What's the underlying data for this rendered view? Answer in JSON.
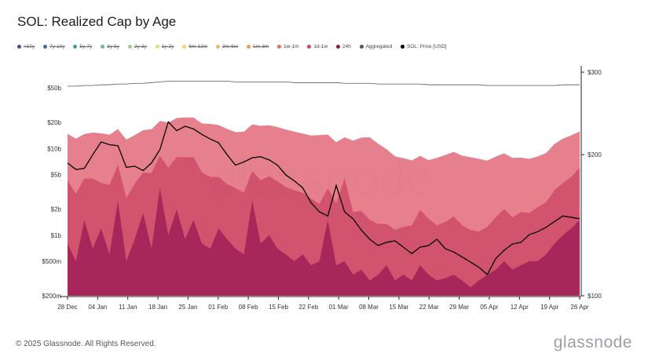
{
  "page": {
    "footer": "© 2025 Glassnode. All Rights Reserved.",
    "brand": "glassnode",
    "watermark": "glassnode"
  },
  "legend": [
    {
      "label": ">10y",
      "color": "#4a4a9a",
      "off": true
    },
    {
      "label": "7y-10y",
      "color": "#3f6fa8",
      "off": true
    },
    {
      "label": "5y-7y",
      "color": "#3f9aa8",
      "off": true
    },
    {
      "label": "3y-5y",
      "color": "#66bba0",
      "off": true
    },
    {
      "label": "2y-3y",
      "color": "#9ccf8d",
      "off": true
    },
    {
      "label": "1y-2y",
      "color": "#d6e27a",
      "off": true
    },
    {
      "label": "6m-12m",
      "color": "#f3d66e",
      "off": true
    },
    {
      "label": "3m-6m",
      "color": "#f6b862",
      "off": true
    },
    {
      "label": "1m-3m",
      "color": "#f39a5a",
      "off": true
    },
    {
      "label": "1w-1m",
      "color": "#e56e5f",
      "off": false
    },
    {
      "label": "1d-1w",
      "color": "#c94362",
      "off": false
    },
    {
      "label": "24h",
      "color": "#93164b",
      "off": false
    },
    {
      "label": "Aggregated",
      "color": "#555555",
      "off": false
    },
    {
      "label": "SOL: Price [USD]",
      "color": "#000000",
      "off": false
    }
  ],
  "chart_data": {
    "type": "area",
    "title": "SOL: Realized Cap by Age",
    "x": [
      "28 Dec",
      "30 Dec",
      "01 Jan",
      "03 Jan",
      "05 Jan",
      "07 Jan",
      "09 Jan",
      "11 Jan",
      "13 Jan",
      "15 Jan",
      "17 Jan",
      "19 Jan",
      "21 Jan",
      "23 Jan",
      "25 Jan",
      "27 Jan",
      "29 Jan",
      "31 Jan",
      "02 Feb",
      "04 Feb",
      "06 Feb",
      "08 Feb",
      "10 Feb",
      "12 Feb",
      "14 Feb",
      "16 Feb",
      "18 Feb",
      "20 Feb",
      "22 Feb",
      "24 Feb",
      "26 Feb",
      "28 Feb",
      "02 Mar",
      "04 Mar",
      "06 Mar",
      "08 Mar",
      "10 Mar",
      "12 Mar",
      "14 Mar",
      "16 Mar",
      "18 Mar",
      "20 Mar",
      "22 Mar",
      "24 Mar",
      "26 Mar",
      "28 Mar",
      "30 Mar",
      "01 Apr",
      "03 Apr",
      "05 Apr",
      "07 Apr",
      "09 Apr",
      "11 Apr",
      "13 Apr",
      "15 Apr",
      "17 Apr",
      "19 Apr",
      "21 Apr",
      "23 Apr",
      "25 Apr",
      "27 Apr",
      "29 Apr"
    ],
    "x_tick_labels": [
      "28 Dec",
      "04 Jan",
      "11 Jan",
      "18 Jan",
      "25 Jan",
      "01 Feb",
      "08 Feb",
      "15 Feb",
      "22 Feb",
      "01 Mar",
      "08 Mar",
      "15 Mar",
      "22 Mar",
      "29 Mar",
      "05 Apr",
      "12 Apr",
      "19 Apr",
      "26 Apr"
    ],
    "y_left": {
      "scale": "log",
      "range": [
        200000000,
        90000000000
      ],
      "tick_values": [
        200000000,
        500000000,
        1000000000,
        2000000000,
        5000000000,
        10000000000,
        20000000000,
        50000000000
      ],
      "tick_labels": [
        "$200m",
        "$500m",
        "$1b",
        "$2b",
        "$5b",
        "$10b",
        "$20b",
        "$50b"
      ]
    },
    "y_right": {
      "scale": "log",
      "range": [
        100,
        300
      ],
      "tick_values": [
        100,
        200,
        300
      ],
      "tick_labels": [
        "$100",
        "$200",
        "$300"
      ]
    },
    "series": [
      {
        "name": "1w-1m",
        "color": "#e37281",
        "values": [
          10500000000.0,
          10000000000.0,
          10200000000.0,
          10800000000.0,
          11000000000.0,
          10600000000.0,
          10300000000.0,
          10000000000.0,
          10400000000.0,
          11000000000.0,
          11500000000.0,
          12500000000.0,
          14000000000.0,
          14500000000.0,
          15000000000.0,
          14800000000.0,
          14200000000.0,
          14600000000.0,
          14000000000.0,
          13000000000.0,
          12000000000.0,
          12500000000.0,
          13500000000.0,
          14000000000.0,
          13800000000.0,
          13500000000.0,
          13000000000.0,
          12400000000.0,
          11800000000.0,
          11500000000.0,
          12000000000.0,
          11000000000.0,
          9500000000.0,
          9000000000.0,
          10500000000.0,
          11500000000.0,
          12000000000.0,
          10000000000.0,
          8500000000.0,
          7000000000.0,
          6500000000.0,
          6000000000.0,
          6300000000.0,
          5800000000.0,
          6500000000.0,
          7000000000.0,
          7500000000.0,
          7000000000.0,
          6800000000.0,
          6500000000.0,
          6000000000.0,
          6500000000.0,
          6800000000.0,
          6200000000.0,
          6000000000.0,
          5800000000.0,
          6000000000.0,
          6500000000.0,
          8000000000.0,
          9000000000.0,
          9500000000.0,
          9800000000.0
        ]
      },
      {
        "name": "1d-1w",
        "color": "#d1506d",
        "values": [
          3500000000.0,
          2500000000.0,
          3000000000.0,
          3800000000.0,
          2800000000.0,
          3200000000.0,
          4000000000.0,
          2200000000.0,
          3000000000.0,
          3500000000.0,
          4500000000.0,
          4800000000.0,
          5000000000.0,
          6000000000.0,
          7000000000.0,
          6500000000.0,
          4500000000.0,
          4000000000.0,
          3500000000.0,
          3000000000.0,
          2800000000.0,
          2500000000.0,
          3000000000.0,
          3500000000.0,
          3800000000.0,
          3500000000.0,
          3000000000.0,
          2800000000.0,
          2500000000.0,
          2200000000.0,
          1800000000.0,
          2000000000.0,
          1900000000.0,
          4000000000.0,
          1500000000.0,
          1500000000.0,
          1200000000.0,
          1000000000.0,
          900000000.0,
          850000000.0,
          900000000.0,
          1000000000.0,
          1500000000.0,
          1200000000.0,
          1000000000.0,
          1100000000.0,
          1300000000.0,
          1000000000.0,
          900000000.0,
          800000000.0,
          900000000.0,
          1200000000.0,
          1500000000.0,
          1200000000.0,
          1400000000.0,
          1300000000.0,
          1600000000.0,
          1800000000.0,
          2500000000.0,
          3000000000.0,
          3500000000.0,
          4500000000.0
        ]
      },
      {
        "name": "24h",
        "color": "#a4255a",
        "values": [
          800000000.0,
          500000000.0,
          1500000000.0,
          700000000.0,
          1200000000.0,
          600000000.0,
          2500000000.0,
          500000000.0,
          900000000.0,
          1800000000.0,
          700000000.0,
          3500000000.0,
          1000000000.0,
          2000000000.0,
          900000000.0,
          1500000000.0,
          800000000.0,
          700000000.0,
          1200000000.0,
          900000000.0,
          700000000.0,
          600000000.0,
          2500000000.0,
          800000000.0,
          1000000000.0,
          700000000.0,
          600000000.0,
          500000000.0,
          600000000.0,
          450000000.0,
          500000000.0,
          1500000000.0,
          450000000.0,
          500000000.0,
          350000000.0,
          400000000.0,
          300000000.0,
          350000000.0,
          450000000.0,
          300000000.0,
          350000000.0,
          300000000.0,
          450000000.0,
          350000000.0,
          300000000.0,
          320000000.0,
          350000000.0,
          300000000.0,
          250000000.0,
          300000000.0,
          350000000.0,
          400000000.0,
          500000000.0,
          400000000.0,
          450000000.0,
          500000000.0,
          500000000.0,
          600000000.0,
          800000000.0,
          1000000000.0,
          1200000000.0,
          1500000000.0
        ]
      },
      {
        "name": "Aggregated",
        "color": "#555555",
        "axis": "right",
        "values": [
          280,
          280,
          281,
          281,
          282,
          282,
          283,
          283,
          284,
          284,
          285,
          286,
          287,
          287,
          287,
          287,
          287,
          287,
          287,
          287,
          286,
          286,
          286,
          286,
          286,
          286,
          286,
          285,
          285,
          285,
          285,
          285,
          285,
          284,
          284,
          284,
          284,
          283,
          283,
          283,
          283,
          283,
          283,
          282,
          282,
          282,
          282,
          282,
          282,
          282,
          281,
          281,
          281,
          281,
          281,
          281,
          281,
          281,
          281,
          282,
          282,
          282
        ]
      },
      {
        "name": "SOL: Price [USD]",
        "color": "#000000",
        "axis": "right",
        "values": [
          192,
          186,
          187,
          200,
          213,
          210,
          209,
          188,
          189,
          185,
          192,
          205,
          235,
          225,
          230,
          227,
          221,
          216,
          212,
          200,
          190,
          193,
          197,
          198,
          195,
          190,
          181,
          176,
          170,
          158,
          151,
          148,
          172,
          151,
          146,
          138,
          132,
          128,
          130,
          131,
          127,
          123,
          127,
          128,
          132,
          126,
          124,
          121,
          118,
          115,
          111,
          120,
          125,
          129,
          130,
          135,
          137,
          140,
          144,
          148,
          147,
          146
        ]
      }
    ]
  }
}
